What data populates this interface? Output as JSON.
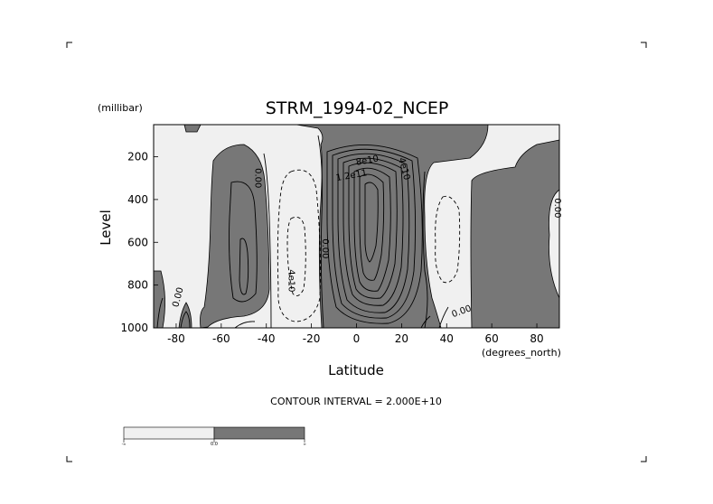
{
  "chart_data": {
    "type": "contour",
    "title": "STRM_1994-02_NCEP",
    "xlabel": "Latitude",
    "ylabel": "Level",
    "x_unit": "(degrees_north)",
    "y_unit": "(millibar)",
    "xlim": [
      -90,
      90
    ],
    "ylim": [
      1000,
      50
    ],
    "x_ticks": [
      -80,
      -60,
      -40,
      -20,
      0,
      20,
      40,
      60,
      80
    ],
    "x_tick_labels": [
      "-80",
      "-60",
      "-40",
      "-20",
      "0",
      "20",
      "40",
      "60",
      "80"
    ],
    "y_ticks": [
      200,
      400,
      600,
      800,
      1000
    ],
    "y_tick_labels": [
      "200",
      "400",
      "600",
      "800",
      "1000"
    ],
    "contour_interval_label": "CONTOUR INTERVAL = 2.000E+10",
    "contour_labels": [
      {
        "text": "0.00",
        "lat": -45,
        "p": 300,
        "rot": 90
      },
      {
        "text": "0.00",
        "lat": 88,
        "p": 440,
        "rot": 90
      },
      {
        "text": "0.00",
        "lat": -15,
        "p": 630,
        "rot": 90
      },
      {
        "text": "4e10",
        "lat": -30,
        "p": 780,
        "rot": 90
      },
      {
        "text": "0.00",
        "lat": -78,
        "p": 860,
        "rot": -75
      },
      {
        "text": "0.00",
        "lat": 47,
        "p": 935,
        "rot": -20
      },
      {
        "text": "8e10",
        "lat": 5,
        "p": 230,
        "rot": -10
      },
      {
        "text": "4e10",
        "lat": 20,
        "p": 260,
        "rot": 75
      },
      {
        "text": "1.2e11",
        "lat": -2,
        "p": 300,
        "rot": -10
      }
    ],
    "colorbar": {
      "segments": [
        {
          "color": "#f0f0f0",
          "meaning": "negative"
        },
        {
          "color": "#777777",
          "meaning": "positive"
        }
      ],
      "tick_labels": [
        "-∞",
        "0.0",
        "∞"
      ]
    },
    "colors": {
      "positive": "#777777",
      "negative": "#f0f0f0"
    }
  }
}
